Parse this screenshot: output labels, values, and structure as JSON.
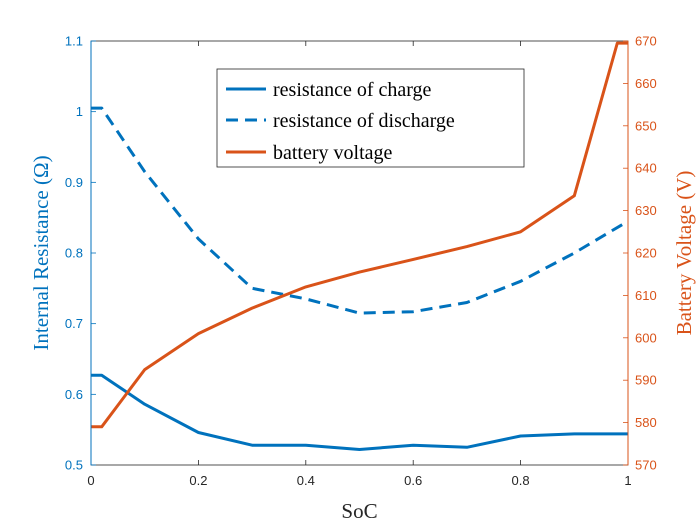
{
  "chart_data": {
    "type": "line",
    "xlabel": "SoC",
    "ylabel_left": "Internal Resistance (Ω)",
    "ylabel_right": "Battery Voltage (V)",
    "xlim": [
      0,
      1
    ],
    "ylim_left": [
      0.5,
      1.1
    ],
    "ylim_right": [
      570,
      670
    ],
    "xticks": [
      "0",
      "0.2",
      "0.4",
      "0.6",
      "0.8",
      "1"
    ],
    "yticks_left": [
      "0.5",
      "0.6",
      "0.7",
      "0.8",
      "0.9",
      "1",
      "1.1"
    ],
    "yticks_right": [
      "570",
      "580",
      "590",
      "600",
      "610",
      "620",
      "630",
      "640",
      "650",
      "660",
      "670"
    ],
    "grid": false,
    "legend_position": "top-center",
    "colors": {
      "left_axis": "#0072bd",
      "right_axis": "#d95319",
      "box": "#262626"
    },
    "series": [
      {
        "name": "resistance of charge",
        "axis": "left",
        "style": "solid",
        "color": "#0072bd",
        "x": [
          0,
          0.02,
          0.1,
          0.2,
          0.3,
          0.4,
          0.5,
          0.6,
          0.7,
          0.8,
          0.9,
          1.0
        ],
        "y": [
          0.627,
          0.627,
          0.586,
          0.546,
          0.528,
          0.528,
          0.522,
          0.528,
          0.525,
          0.541,
          0.544,
          0.544
        ]
      },
      {
        "name": "resistance of discharge",
        "axis": "left",
        "style": "dashed",
        "color": "#0072bd",
        "x": [
          0,
          0.02,
          0.1,
          0.2,
          0.3,
          0.4,
          0.5,
          0.6,
          0.7,
          0.8,
          0.9,
          1.0
        ],
        "y": [
          1.005,
          1.005,
          0.915,
          0.82,
          0.75,
          0.735,
          0.715,
          0.717,
          0.73,
          0.76,
          0.8,
          0.845
        ]
      },
      {
        "name": "battery voltage",
        "axis": "right",
        "style": "solid",
        "color": "#d95319",
        "x": [
          0,
          0.02,
          0.1,
          0.2,
          0.3,
          0.4,
          0.5,
          0.6,
          0.7,
          0.8,
          0.9,
          0.98,
          1.0
        ],
        "y": [
          579,
          579,
          592.5,
          601,
          607,
          612,
          615.5,
          618.5,
          621.5,
          625,
          633.5,
          669.5,
          669.5
        ]
      }
    ]
  }
}
